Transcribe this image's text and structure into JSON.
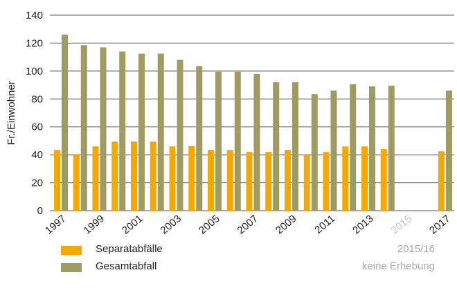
{
  "chart_data": {
    "type": "bar",
    "title": "",
    "xlabel": "",
    "ylabel": "Fr./Einwohner",
    "ylim": [
      0,
      140
    ],
    "yticks": [
      0,
      20,
      40,
      60,
      80,
      100,
      120,
      140
    ],
    "grid": true,
    "categories": [
      "1997",
      "1998",
      "1999",
      "2000",
      "2001",
      "2002",
      "2003",
      "2004",
      "2005",
      "2006",
      "2007",
      "2008",
      "2009",
      "2010",
      "2011",
      "2012",
      "2013",
      "2014",
      "2015",
      "2016",
      "2017"
    ],
    "tick_labels": [
      "1997",
      "1999",
      "2001",
      "2003",
      "2005",
      "2007",
      "2009",
      "2011",
      "2013",
      "2015",
      "2017"
    ],
    "greyed_tick_labels": [
      "2015"
    ],
    "series": [
      {
        "name": "Separatabfälle",
        "color": "#f5a800",
        "values": [
          43.5,
          40.5,
          46,
          49.5,
          49.5,
          49.5,
          46,
          46.5,
          43.5,
          43.5,
          42,
          42,
          43.5,
          40,
          42,
          46,
          46,
          44,
          null,
          null,
          42.5
        ]
      },
      {
        "name": "Gesamtabfall",
        "color": "#a09a63",
        "values": [
          126,
          118.5,
          117,
          114,
          112.5,
          112.5,
          108,
          103.5,
          99.5,
          99.5,
          98,
          92,
          92,
          83.5,
          86,
          90.5,
          89,
          89.5,
          null,
          null,
          86
        ]
      }
    ],
    "note_lines": [
      "2015/16",
      "keine Erhebung"
    ],
    "legend_position": "bottom-left"
  }
}
